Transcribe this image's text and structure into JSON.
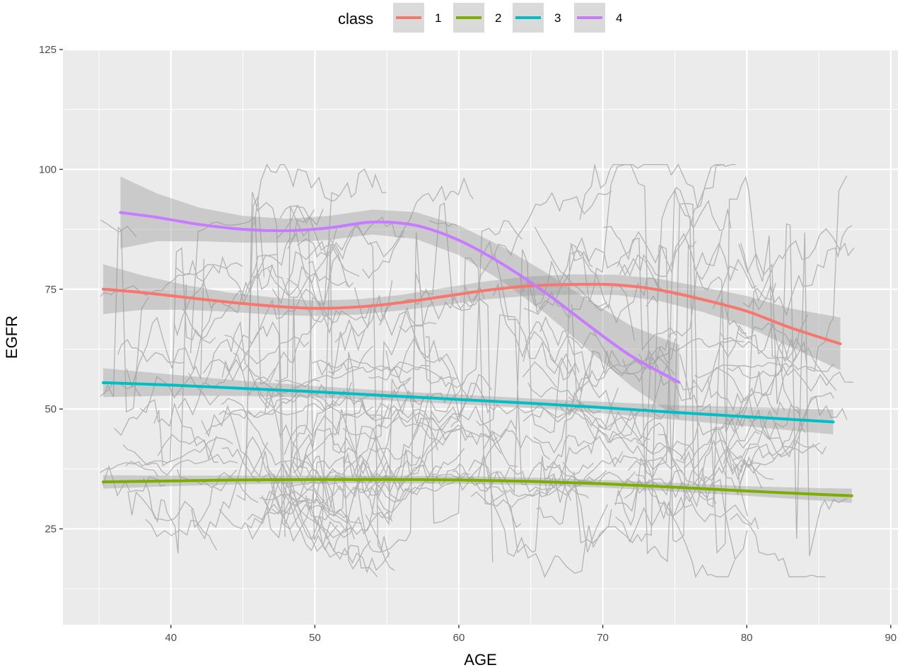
{
  "chart_data": {
    "type": "line",
    "xlabel": "AGE",
    "ylabel": "EGFR",
    "xlim": [
      32.5,
      90.5
    ],
    "ylim": [
      5,
      125
    ],
    "x_ticks": [
      40,
      50,
      60,
      70,
      80,
      90
    ],
    "y_ticks": [
      25,
      50,
      75,
      100,
      125
    ],
    "grid": true,
    "legend": {
      "title": "class",
      "position": "top",
      "entries": [
        "1",
        "2",
        "3",
        "4"
      ]
    },
    "series": [
      {
        "name": "1",
        "color": "#F8766D",
        "x": [
          35.3,
          38,
          41,
          44,
          47,
          50,
          53,
          56,
          59,
          62,
          65,
          68,
          71,
          74,
          77,
          80,
          83,
          86.5
        ],
        "y": [
          75,
          74.3,
          73.3,
          72.3,
          71.5,
          71,
          71.3,
          72.2,
          73.5,
          74.8,
          75.7,
          76,
          75.9,
          74.8,
          72.8,
          70.4,
          67,
          63.6
        ],
        "ci_width": [
          5.2,
          3.6,
          2.6,
          2.0,
          1.8,
          1.6,
          1.6,
          1.6,
          1.8,
          1.9,
          2.0,
          2.1,
          2.1,
          2.3,
          2.6,
          3.2,
          4.0,
          5.5
        ]
      },
      {
        "name": "2",
        "color": "#7CAE00",
        "x": [
          35.3,
          40,
          45,
          50,
          55,
          60,
          65,
          70,
          75,
          80,
          85,
          87.3
        ],
        "y": [
          34.8,
          35,
          35.2,
          35.3,
          35.3,
          35.2,
          34.9,
          34.4,
          33.7,
          32.9,
          32.2,
          31.9
        ],
        "ci_width": [
          1.4,
          1.1,
          0.9,
          0.8,
          0.8,
          0.8,
          0.8,
          0.8,
          0.9,
          1.0,
          1.3,
          1.5
        ]
      },
      {
        "name": "3",
        "color": "#00BFC4",
        "x": [
          35.3,
          40,
          45,
          50,
          55,
          60,
          65,
          70,
          75,
          80,
          86
        ],
        "y": [
          55.5,
          55,
          54.3,
          53.6,
          52.8,
          52,
          51.2,
          50.3,
          49.3,
          48.4,
          47.3
        ],
        "ci_width": [
          3.0,
          2.2,
          1.6,
          1.2,
          1.0,
          1.0,
          1.0,
          1.2,
          1.5,
          2.0,
          2.6
        ]
      },
      {
        "name": "4",
        "color": "#C77CFF",
        "x": [
          36.5,
          39,
          42,
          45,
          48,
          51,
          54,
          57,
          60,
          63,
          66,
          69,
          72,
          75.3
        ],
        "y": [
          91,
          90,
          88.5,
          87.5,
          87.2,
          87.8,
          89,
          88.3,
          85.2,
          80.3,
          74.3,
          67.5,
          61,
          55.6
        ],
        "ci_width": [
          7.5,
          5.0,
          3.5,
          2.8,
          2.5,
          2.5,
          2.6,
          2.8,
          3.1,
          3.6,
          4.3,
          5.2,
          6.3,
          7.8
        ]
      }
    ]
  }
}
